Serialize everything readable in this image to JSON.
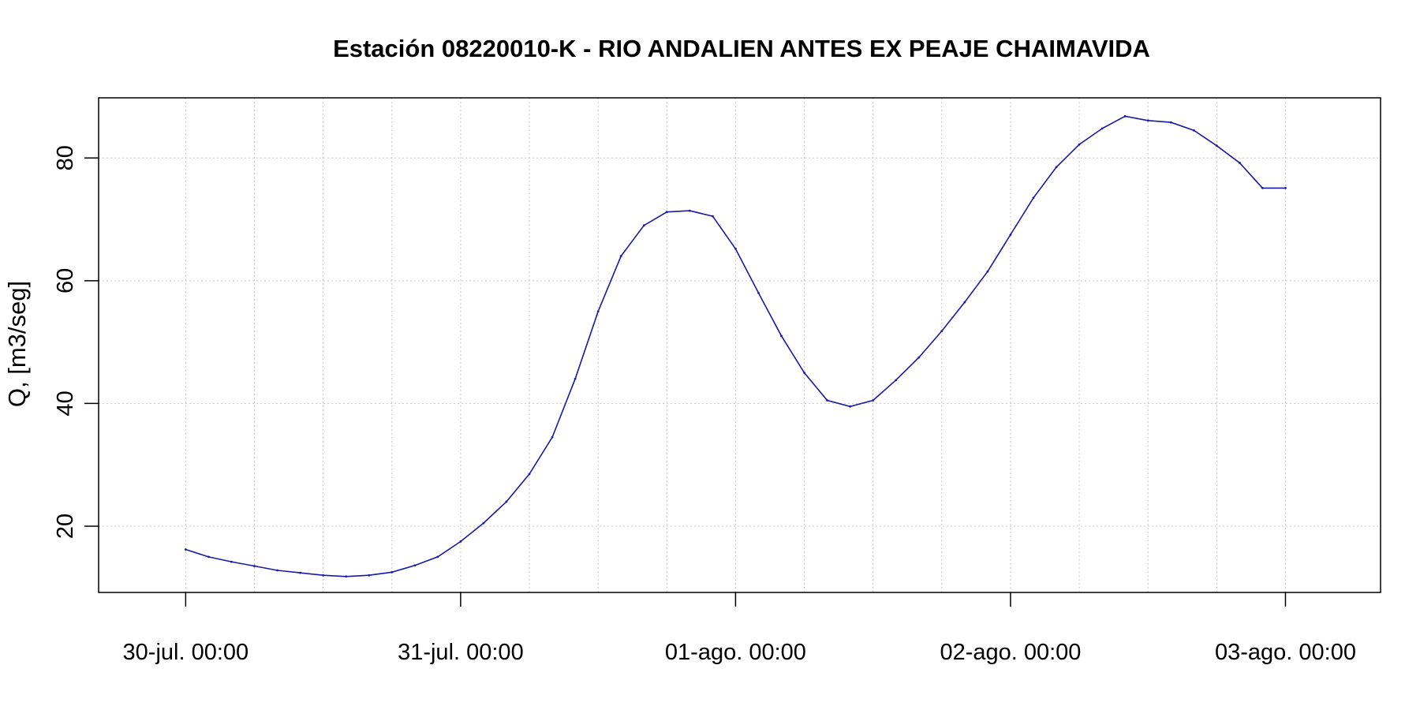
{
  "chart_data": {
    "type": "line",
    "title": "Estación 08220010-K - RIO ANDALIEN ANTES EX PEAJE CHAIMAVIDA",
    "xlabel": "",
    "ylabel": "Q, [m3/seg]",
    "x_ticks": [
      "30-jul. 00:00",
      "31-jul. 00:00",
      "01-ago. 00:00",
      "02-ago. 00:00",
      "03-ago. 00:00"
    ],
    "y_ticks": [
      20,
      40,
      60,
      80
    ],
    "ylim": [
      9.2,
      89.8
    ],
    "xlim_hours": [
      -7.6,
      104.3
    ],
    "x_unit": "hours after 30-jul. 00:00",
    "grid": true,
    "series": [
      {
        "color": "#1a1aa6",
        "x_hours": [
          0,
          2,
          4,
          6,
          8,
          10,
          12,
          14,
          16,
          18,
          20,
          22,
          24,
          26,
          28,
          30,
          32,
          34,
          36,
          38,
          40,
          42,
          44,
          46,
          48,
          50,
          52,
          54,
          56,
          58,
          60,
          62,
          64,
          66,
          68,
          70,
          72,
          74,
          76,
          78,
          80,
          82,
          84,
          86,
          88,
          90,
          92,
          94,
          96
        ],
        "values": [
          16.2,
          15.0,
          14.2,
          13.5,
          12.8,
          12.4,
          12.0,
          11.8,
          12.0,
          12.5,
          13.6,
          15.0,
          17.5,
          20.5,
          24.0,
          28.5,
          34.5,
          44.0,
          55.0,
          64.0,
          69.0,
          71.2,
          71.4,
          70.5,
          65.2,
          58.0,
          51.0,
          45.0,
          40.5,
          39.5,
          40.5,
          43.8,
          47.5,
          51.8,
          56.5,
          61.5,
          67.5,
          73.5,
          78.5,
          82.2,
          84.8,
          86.8,
          86.1,
          85.8,
          84.5,
          82.0,
          79.2,
          75.1,
          75.1
        ]
      }
    ]
  }
}
